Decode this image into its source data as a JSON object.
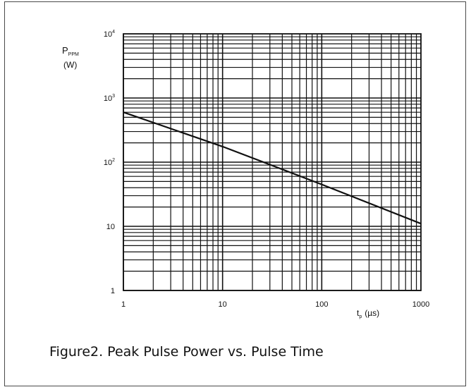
{
  "figure": {
    "caption": "Figure2. Peak Pulse Power vs. Pulse Time"
  },
  "chart_data": {
    "type": "line",
    "x_scale": "log",
    "y_scale": "log",
    "xlim": [
      1,
      1000
    ],
    "ylim": [
      1,
      10000
    ],
    "grid": true,
    "ylabel_main": "P",
    "ylabel_sub": "PPM",
    "ylabel_unit": "(W)",
    "xlabel_main": "t",
    "xlabel_sub": "p",
    "xlabel_unit": "(µs)",
    "x_ticks": [
      {
        "value": 1,
        "label": "1"
      },
      {
        "value": 10,
        "label": "10"
      },
      {
        "value": 100,
        "label": "100"
      },
      {
        "value": 1000,
        "label": "1000"
      }
    ],
    "y_ticks": [
      {
        "value": 1,
        "base": "1",
        "exp": ""
      },
      {
        "value": 10,
        "base": "10",
        "exp": ""
      },
      {
        "value": 100,
        "base": "10",
        "exp": "2"
      },
      {
        "value": 1000,
        "base": "10",
        "exp": "3"
      },
      {
        "value": 10000,
        "base": "10",
        "exp": "4"
      }
    ],
    "series": [
      {
        "x": [
          1,
          10,
          100,
          1000
        ],
        "y": [
          600,
          175,
          45,
          11
        ]
      }
    ]
  }
}
